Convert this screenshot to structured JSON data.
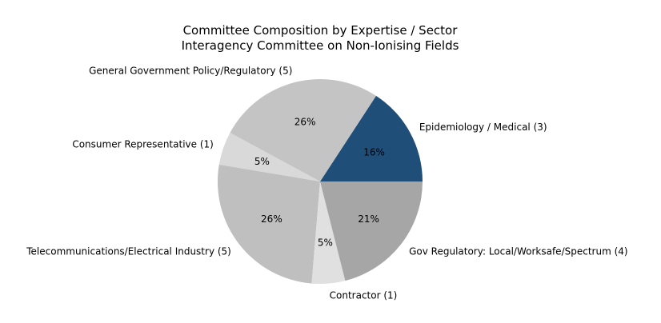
{
  "chart_data": {
    "type": "pie",
    "title": "Committee Composition by Expertise / Sector",
    "subtitle": "Interagency Committee on Non-Ionising Fields",
    "start_angle_deg": 0,
    "direction": "counterclockwise",
    "slices": [
      {
        "label": "Epidemiology / Medical (3)",
        "value": 3,
        "pct_label": "16%",
        "color": "#1f4e79"
      },
      {
        "label": "General Government Policy/Regulatory (5)",
        "value": 5,
        "pct_label": "26%",
        "color": "#c4c4c4"
      },
      {
        "label": "Consumer Representative (1)",
        "value": 1,
        "pct_label": "5%",
        "color": "#d9d9d9"
      },
      {
        "label": "Telecommunications/Electrical Industry (5)",
        "value": 5,
        "pct_label": "26%",
        "color": "#bfbfbf"
      },
      {
        "label": "Contractor (1)",
        "value": 1,
        "pct_label": "5%",
        "color": "#e0e0e0"
      },
      {
        "label": "Gov Regulatory: Local/Worksafe/Spectrum (4)",
        "value": 4,
        "pct_label": "21%",
        "color": "#a6a6a6"
      }
    ]
  }
}
